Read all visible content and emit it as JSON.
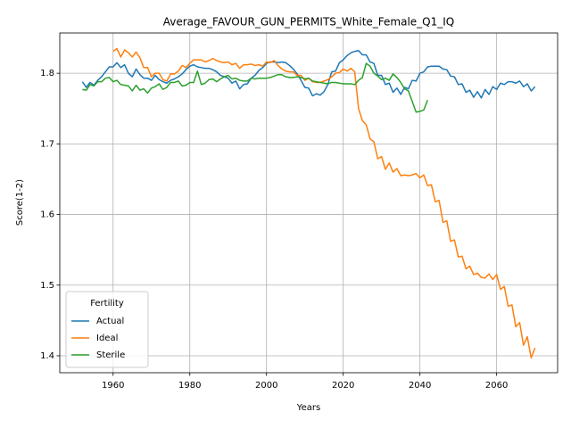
{
  "chart_data": {
    "type": "line",
    "title": "Average_FAVOUR_GUN_PERMITS_White_Female_Q1_IQ",
    "xlabel": "Years",
    "ylabel": "Score(1-2)",
    "legend_title": "Fertility",
    "legend": "lower left",
    "grid": true,
    "xlim": [
      1946.1,
      2075.9
    ],
    "ylim": [
      1.376,
      1.857
    ],
    "xticks": [
      1960,
      1980,
      2000,
      2020,
      2040,
      2060
    ],
    "yticks": [
      1.4,
      1.5,
      1.6,
      1.7,
      1.8
    ],
    "x": [
      1952,
      1953,
      1954,
      1955,
      1956,
      1957,
      1958,
      1959,
      1960,
      1961,
      1962,
      1963,
      1964,
      1965,
      1966,
      1967,
      1968,
      1969,
      1970,
      1971,
      1972,
      1973,
      1974,
      1975,
      1976,
      1977,
      1978,
      1979,
      1980,
      1981,
      1982,
      1983,
      1984,
      1985,
      1986,
      1987,
      1988,
      1989,
      1990,
      1991,
      1992,
      1993,
      1994,
      1995,
      1996,
      1997,
      1998,
      1999,
      2000,
      2001,
      2002,
      2003,
      2004,
      2005,
      2006,
      2007,
      2008,
      2009,
      2010,
      2011,
      2012,
      2013,
      2014,
      2015,
      2016,
      2017,
      2018,
      2019,
      2020,
      2021,
      2022,
      2023,
      2024,
      2025,
      2026,
      2027,
      2028,
      2029,
      2030,
      2031,
      2032,
      2033,
      2034,
      2035,
      2036,
      2037,
      2038,
      2039,
      2040,
      2041,
      2042,
      2043,
      2044,
      2045,
      2046,
      2047,
      2048,
      2049,
      2050,
      2051,
      2052,
      2053,
      2054,
      2055,
      2056,
      2057,
      2058,
      2059,
      2060,
      2061,
      2062,
      2063,
      2064,
      2065,
      2066,
      2067,
      2068,
      2069,
      2070
    ],
    "series": [
      {
        "name": "Actual",
        "color": "#1f77b4",
        "values": [
          1.788,
          1.78,
          1.787,
          1.783,
          1.79,
          1.795,
          1.802,
          1.809,
          1.809,
          1.815,
          1.808,
          1.812,
          1.8,
          1.795,
          1.806,
          1.798,
          1.793,
          1.793,
          1.79,
          1.797,
          1.791,
          1.788,
          1.786,
          1.79,
          1.792,
          1.795,
          1.799,
          1.805,
          1.81,
          1.812,
          1.809,
          1.808,
          1.807,
          1.807,
          1.805,
          1.802,
          1.797,
          1.795,
          1.793,
          1.786,
          1.789,
          1.778,
          1.784,
          1.785,
          1.793,
          1.797,
          1.804,
          1.808,
          1.814,
          1.816,
          1.816,
          1.815,
          1.816,
          1.815,
          1.811,
          1.806,
          1.799,
          1.79,
          1.78,
          1.779,
          1.768,
          1.771,
          1.769,
          1.774,
          1.784,
          1.802,
          1.803,
          1.815,
          1.819,
          1.825,
          1.829,
          1.831,
          1.832,
          1.826,
          1.826,
          1.816,
          1.814,
          1.797,
          1.797,
          1.784,
          1.786,
          1.773,
          1.779,
          1.77,
          1.78,
          1.778,
          1.79,
          1.789,
          1.8,
          1.802,
          1.809,
          1.81,
          1.81,
          1.81,
          1.806,
          1.805,
          1.796,
          1.795,
          1.784,
          1.785,
          1.773,
          1.776,
          1.766,
          1.774,
          1.765,
          1.777,
          1.77,
          1.781,
          1.777,
          1.786,
          1.784,
          1.788,
          1.788,
          1.786,
          1.789,
          1.781,
          1.785,
          1.775,
          1.781
        ]
      },
      {
        "name": "Ideal",
        "color": "#ff7f0e",
        "values": [
          null,
          null,
          null,
          null,
          null,
          null,
          null,
          null,
          1.831,
          1.835,
          1.823,
          1.833,
          1.829,
          1.823,
          1.83,
          1.822,
          1.808,
          1.808,
          1.795,
          1.8,
          1.8,
          1.791,
          1.789,
          1.799,
          1.799,
          1.803,
          1.811,
          1.808,
          1.814,
          1.819,
          1.819,
          1.819,
          1.816,
          1.818,
          1.821,
          1.818,
          1.816,
          1.815,
          1.816,
          1.812,
          1.814,
          1.807,
          1.812,
          1.812,
          1.813,
          1.811,
          1.812,
          1.81,
          1.816,
          1.815,
          1.818,
          1.811,
          1.806,
          1.803,
          1.802,
          1.802,
          1.797,
          1.797,
          1.79,
          1.793,
          1.788,
          1.787,
          1.787,
          1.789,
          1.791,
          1.795,
          1.8,
          1.801,
          1.806,
          1.803,
          1.807,
          1.802,
          1.75,
          1.733,
          1.727,
          1.707,
          1.703,
          1.679,
          1.682,
          1.664,
          1.673,
          1.66,
          1.665,
          1.655,
          1.656,
          1.655,
          1.656,
          1.658,
          1.652,
          1.656,
          1.641,
          1.642,
          1.618,
          1.62,
          1.589,
          1.591,
          1.562,
          1.564,
          1.54,
          1.541,
          1.523,
          1.527,
          1.515,
          1.517,
          1.511,
          1.51,
          1.516,
          1.508,
          1.515,
          1.494,
          1.498,
          1.47,
          1.472,
          1.441,
          1.447,
          1.415,
          1.427,
          1.397,
          1.411
        ]
      },
      {
        "name": "Sterile",
        "color": "#2ca02c",
        "values": [
          1.777,
          1.776,
          1.784,
          1.782,
          1.788,
          1.788,
          1.793,
          1.794,
          1.788,
          1.79,
          1.784,
          1.783,
          1.782,
          1.775,
          1.783,
          1.776,
          1.778,
          1.772,
          1.779,
          1.781,
          1.785,
          1.777,
          1.78,
          1.787,
          1.787,
          1.789,
          1.782,
          1.783,
          1.787,
          1.787,
          1.803,
          1.784,
          1.786,
          1.791,
          1.792,
          1.788,
          1.792,
          1.795,
          1.797,
          1.792,
          1.793,
          1.79,
          1.789,
          1.789,
          1.793,
          1.792,
          1.793,
          1.793,
          1.793,
          1.794,
          1.796,
          1.798,
          1.798,
          1.795,
          1.794,
          1.794,
          1.795,
          1.794,
          1.792,
          1.793,
          1.789,
          1.788,
          1.787,
          1.786,
          1.785,
          1.787,
          1.787,
          1.786,
          1.785,
          1.785,
          1.785,
          1.784,
          1.79,
          1.794,
          1.814,
          1.81,
          1.8,
          1.796,
          1.791,
          1.793,
          1.79,
          1.799,
          1.794,
          1.787,
          1.778,
          1.775,
          1.76,
          1.745,
          1.746,
          1.748,
          1.762,
          null,
          null,
          null,
          null,
          null,
          null,
          null,
          null,
          null,
          null,
          null,
          null,
          null,
          null,
          null,
          null,
          null,
          null,
          null,
          null,
          null,
          null,
          null,
          null,
          null,
          null,
          null,
          null
        ]
      }
    ]
  }
}
